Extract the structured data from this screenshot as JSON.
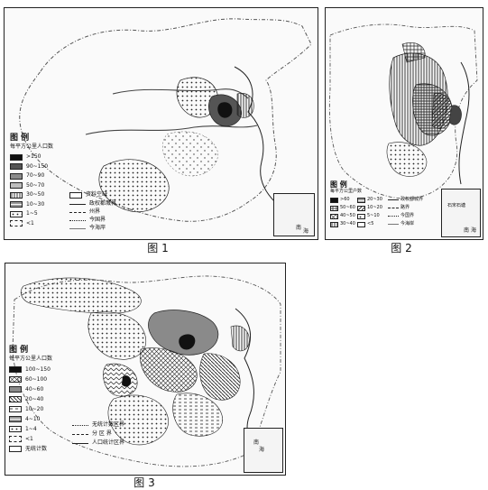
{
  "maps": [
    {
      "caption": "图 1",
      "legend": {
        "title": "图 例",
        "subtitle": "每平方公里人口数",
        "density_classes": [
          ">150",
          "90~150",
          "70~90",
          "50~70",
          "30~50",
          "10~30",
          "1~5",
          "<1"
        ],
        "line_items": [
          "资料空缺",
          "政权都城界",
          "州界",
          "今国界",
          "今海岸"
        ]
      },
      "inset_labels": [
        "南",
        "海"
      ]
    },
    {
      "caption": "图 2",
      "legend": {
        "title": "图 例",
        "subtitle": "每平方公里户数",
        "density_classes": [
          ">60",
          "20~30",
          "50~60",
          "10~20",
          "40~50",
          "5~10",
          "30~40",
          "<5"
        ],
        "line_items": [
          "政权都城界",
          "路界",
          "今国界",
          "今海岸"
        ]
      },
      "inset_labels": [
        "南",
        "海",
        "石宋石塘"
      ]
    },
    {
      "caption": "图 3",
      "legend": {
        "title": "图 例",
        "subtitle": "每平方公里人口数",
        "density_classes": [
          "100~150",
          "60~100",
          "40~60",
          "20~40",
          "10~20",
          "4~10",
          "1~4",
          "<1",
          "无统计数"
        ],
        "line_items": [
          "无统计数区界",
          "分 区 界",
          "人口统计区界"
        ]
      },
      "inset_labels": [
        "南",
        "海"
      ]
    }
  ],
  "colors": {
    "frame": "#222222",
    "darkest": "#111111",
    "dark": "#555555",
    "mid": "#8a8a8a",
    "light": "#bdbdbd"
  }
}
